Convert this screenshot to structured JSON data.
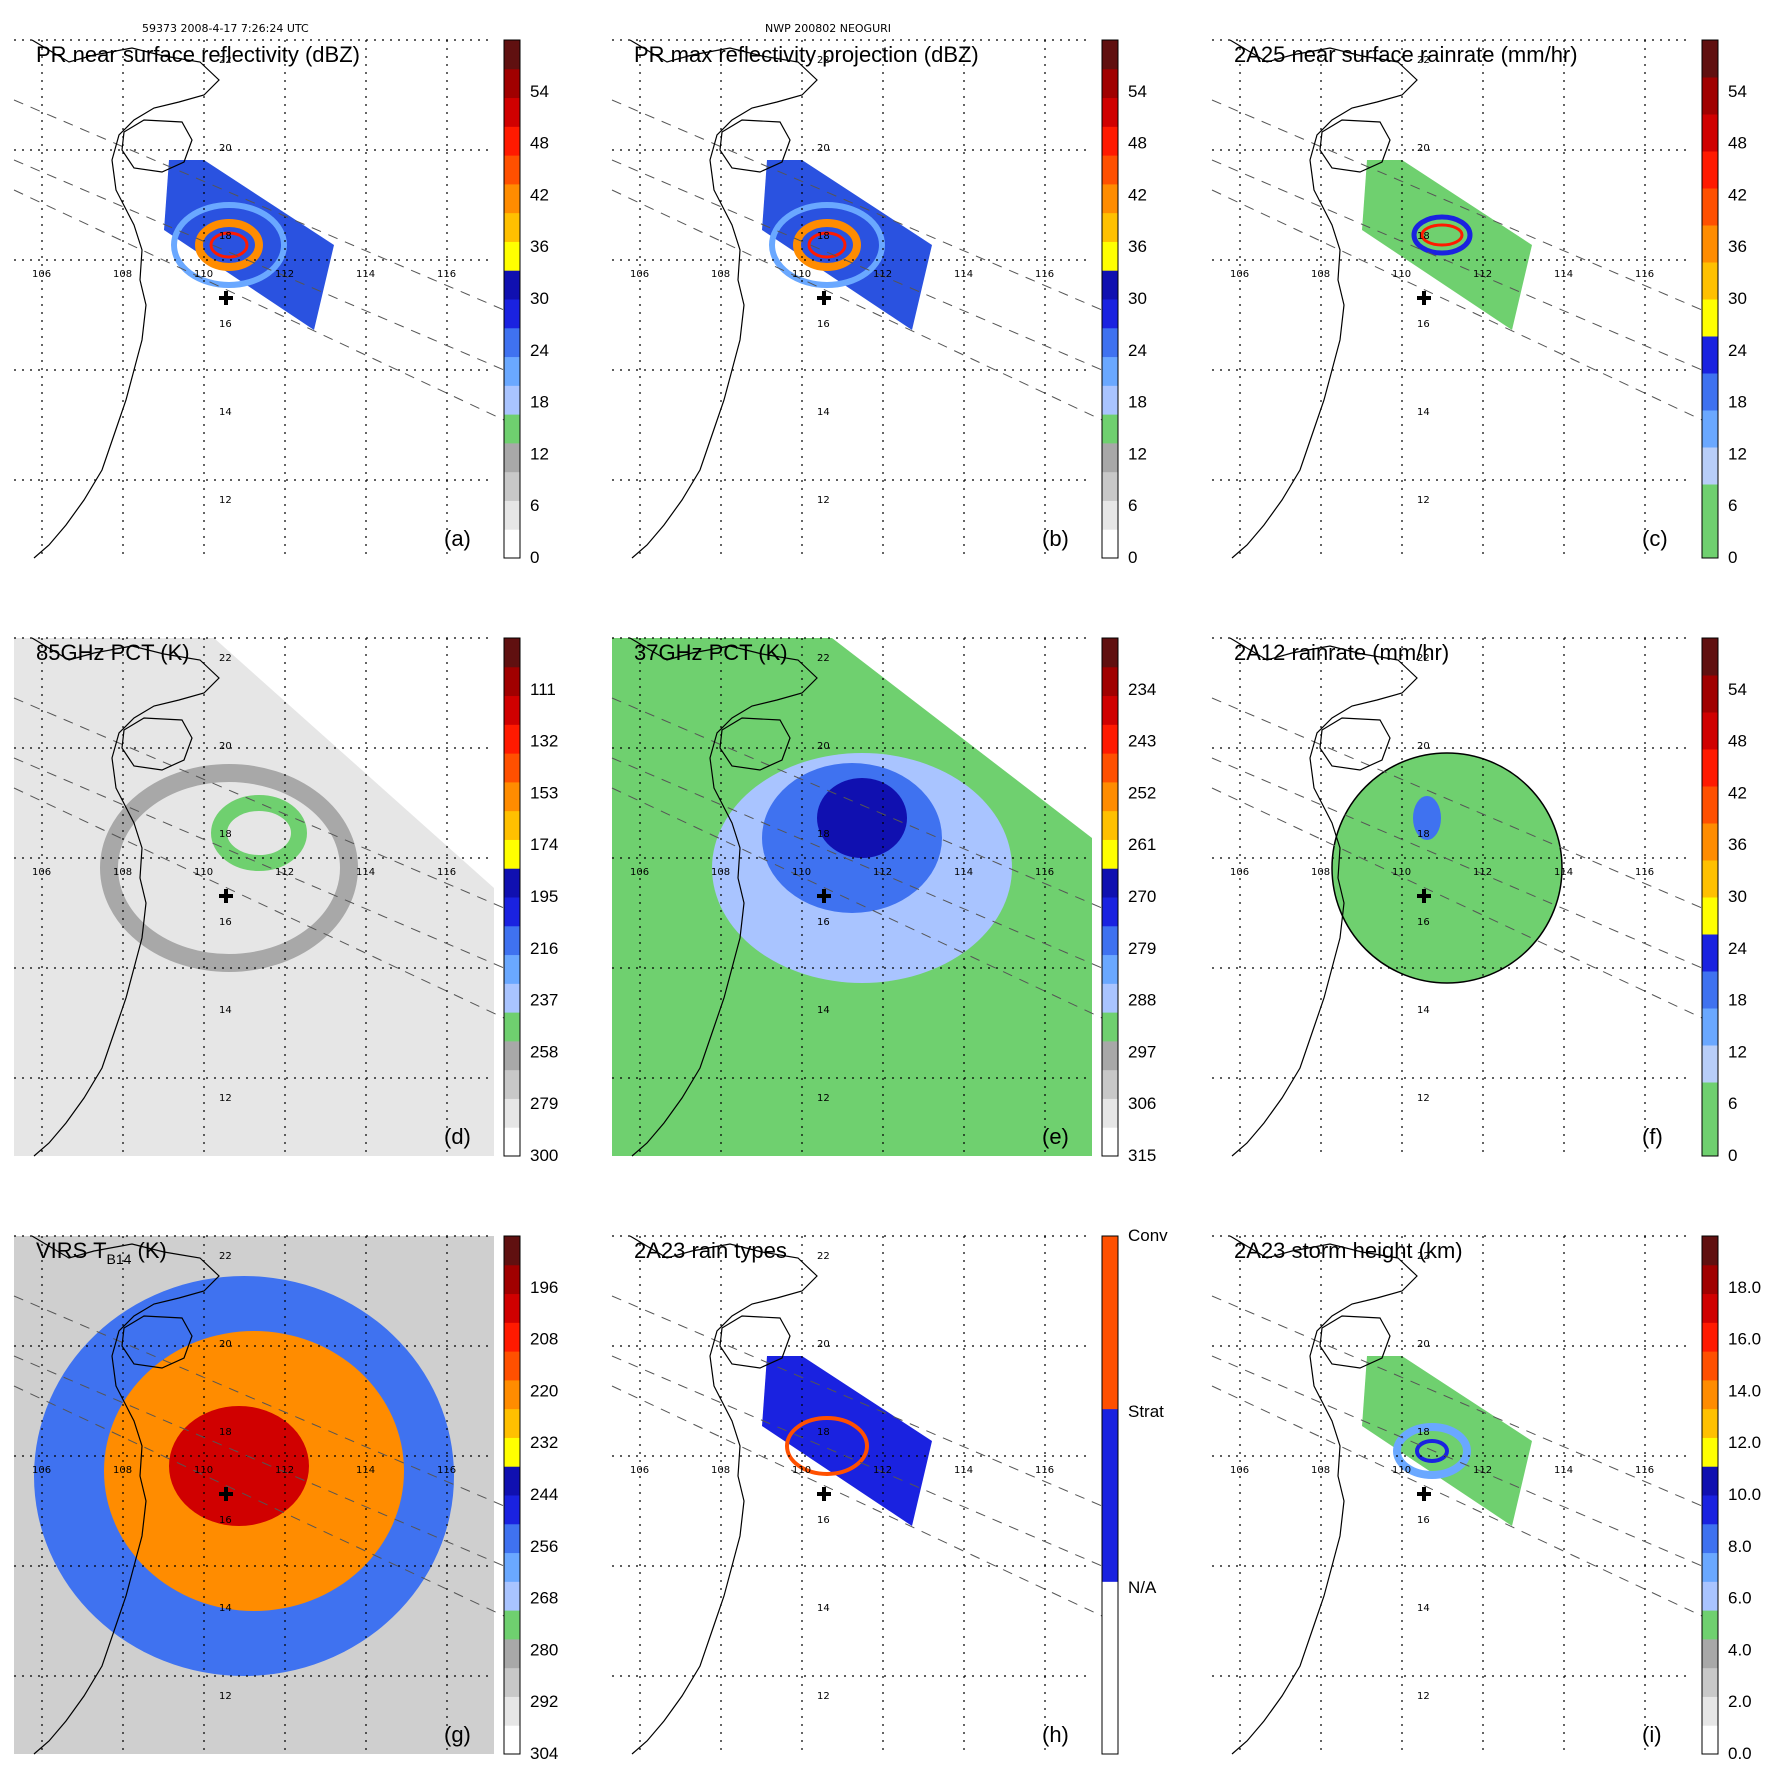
{
  "header": {
    "left_caption": "59373 2008-4-17 7:26:24 UTC",
    "center_caption": "NWP 200802 NEOGURI"
  },
  "map": {
    "lon_labels": [
      "106",
      "108",
      "110",
      "112",
      "114",
      "116"
    ],
    "lat_labels": [
      "12",
      "14",
      "16",
      "18",
      "20",
      "22"
    ]
  },
  "panels": [
    {
      "id": "a",
      "title": "PR near surface reflectivity (dBZ)",
      "letter": "(a)",
      "colorbar": {
        "ticks": [
          "0",
          "6",
          "12",
          "18",
          "24",
          "30",
          "36",
          "42",
          "48",
          "54"
        ],
        "colors": [
          "#ffffff",
          "#e6e6e6",
          "#c8c8c8",
          "#a8a8a8",
          "#6fd06f",
          "#a9c4ff",
          "#6aa8ff",
          "#3f72f0",
          "#1a22e0",
          "#1010b0",
          "#ffff00",
          "#ffc000",
          "#ff8c00",
          "#ff5000",
          "#ff1a00",
          "#d00000",
          "#a00000",
          "#601010"
        ]
      }
    },
    {
      "id": "b",
      "title": "PR max reflectivity projection (dBZ)",
      "letter": "(b)",
      "colorbar": {
        "ticks": [
          "0",
          "6",
          "12",
          "18",
          "24",
          "30",
          "36",
          "42",
          "48",
          "54"
        ],
        "colors": [
          "#ffffff",
          "#e6e6e6",
          "#c8c8c8",
          "#a8a8a8",
          "#6fd06f",
          "#a9c4ff",
          "#6aa8ff",
          "#3f72f0",
          "#1a22e0",
          "#1010b0",
          "#ffff00",
          "#ffc000",
          "#ff8c00",
          "#ff5000",
          "#ff1a00",
          "#d00000",
          "#a00000",
          "#601010"
        ]
      }
    },
    {
      "id": "c",
      "title": "2A25 near surface rainrate (mm/hr)",
      "letter": "(c)",
      "colorbar": {
        "ticks": [
          "0",
          "6",
          "12",
          "18",
          "24",
          "30",
          "36",
          "42",
          "48",
          "54"
        ],
        "colors": [
          "#6fd06f",
          "#6fd06f",
          "#b8cef8",
          "#6aa8ff",
          "#3f72f0",
          "#1a22e0",
          "#ffff00",
          "#ffc000",
          "#ff8c00",
          "#ff5000",
          "#ff1a00",
          "#d00000",
          "#a00000",
          "#601010"
        ]
      }
    },
    {
      "id": "d",
      "title": "85GHz PCT (K)",
      "letter": "(d)",
      "colorbar": {
        "ticks": [
          "300",
          "279",
          "258",
          "237",
          "216",
          "195",
          "174",
          "153",
          "132",
          "111"
        ],
        "colors": [
          "#ffffff",
          "#e6e6e6",
          "#c8c8c8",
          "#a8a8a8",
          "#6fd06f",
          "#a9c4ff",
          "#6aa8ff",
          "#3f72f0",
          "#1a22e0",
          "#1010b0",
          "#ffff00",
          "#ffc000",
          "#ff8c00",
          "#ff5000",
          "#ff1a00",
          "#d00000",
          "#a00000",
          "#601010"
        ]
      }
    },
    {
      "id": "e",
      "title": "37GHz PCT (K)",
      "letter": "(e)",
      "colorbar": {
        "ticks": [
          "315",
          "306",
          "297",
          "288",
          "279",
          "270",
          "261",
          "252",
          "243",
          "234"
        ],
        "colors": [
          "#ffffff",
          "#e6e6e6",
          "#c8c8c8",
          "#a8a8a8",
          "#6fd06f",
          "#a9c4ff",
          "#6aa8ff",
          "#3f72f0",
          "#1a22e0",
          "#1010b0",
          "#ffff00",
          "#ffc000",
          "#ff8c00",
          "#ff5000",
          "#ff1a00",
          "#d00000",
          "#a00000",
          "#601010"
        ]
      }
    },
    {
      "id": "f",
      "title": "2A12 rainrate (mm/hr)",
      "letter": "(f)",
      "colorbar": {
        "ticks": [
          "0",
          "6",
          "12",
          "18",
          "24",
          "30",
          "36",
          "42",
          "48",
          "54"
        ],
        "colors": [
          "#6fd06f",
          "#6fd06f",
          "#b8cef8",
          "#6aa8ff",
          "#3f72f0",
          "#1a22e0",
          "#ffff00",
          "#ffc000",
          "#ff8c00",
          "#ff5000",
          "#ff1a00",
          "#d00000",
          "#a00000",
          "#601010"
        ]
      }
    },
    {
      "id": "g",
      "title": "VIRS T",
      "title_sub": "B14",
      "title_suffix": " (K)",
      "letter": "(g)",
      "colorbar": {
        "ticks": [
          "304",
          "292",
          "280",
          "268",
          "256",
          "244",
          "232",
          "220",
          "208",
          "196"
        ],
        "colors": [
          "#ffffff",
          "#e6e6e6",
          "#c8c8c8",
          "#a8a8a8",
          "#6fd06f",
          "#a9c4ff",
          "#6aa8ff",
          "#3f72f0",
          "#1a22e0",
          "#1010b0",
          "#ffff00",
          "#ffc000",
          "#ff8c00",
          "#ff5000",
          "#ff1a00",
          "#d00000",
          "#a00000",
          "#601010"
        ]
      }
    },
    {
      "id": "h",
      "title": "2A23 rain types",
      "letter": "(h)",
      "colorbar": {
        "categorical": true,
        "ticks": [
          "N/A",
          "Strat",
          "Conv"
        ],
        "colors": [
          "#ffffff",
          "#1a22e0",
          "#ff5000"
        ]
      }
    },
    {
      "id": "i",
      "title": "2A23 storm height (km)",
      "letter": "(i)",
      "colorbar": {
        "ticks": [
          "0.0",
          "2.0",
          "4.0",
          "6.0",
          "8.0",
          "10.0",
          "12.0",
          "14.0",
          "16.0",
          "18.0"
        ],
        "colors": [
          "#ffffff",
          "#e6e6e6",
          "#c8c8c8",
          "#a8a8a8",
          "#6fd06f",
          "#a9c4ff",
          "#6aa8ff",
          "#3f72f0",
          "#1a22e0",
          "#1010b0",
          "#ffff00",
          "#ffc000",
          "#ff8c00",
          "#ff5000",
          "#ff1a00",
          "#d00000",
          "#a00000",
          "#601010"
        ]
      }
    }
  ]
}
